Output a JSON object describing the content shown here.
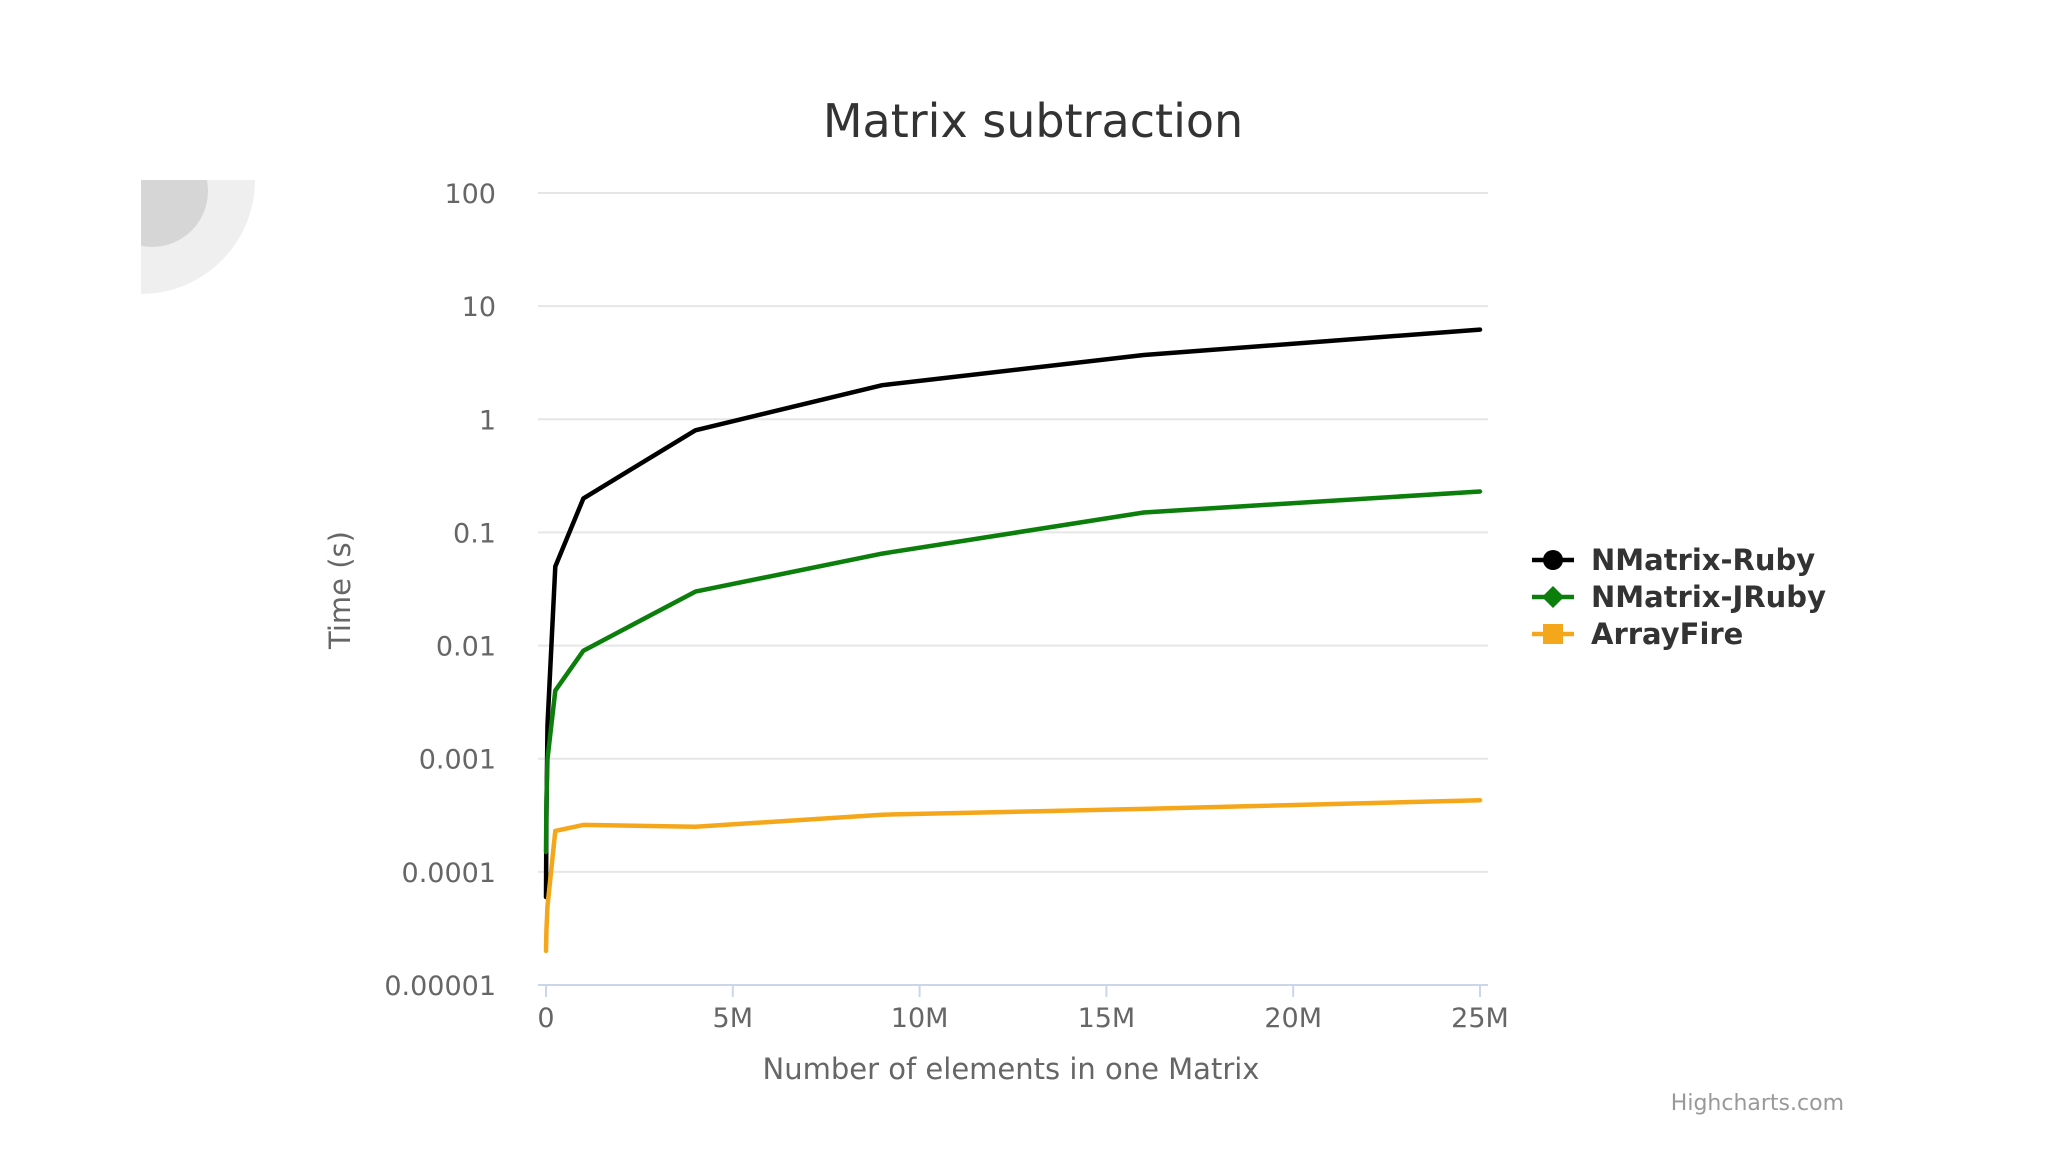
{
  "chart_data": {
    "type": "line",
    "title": "Matrix subtraction",
    "xlabel": "Number of elements in one Matrix",
    "ylabel": "Time (s)",
    "xlim": [
      0,
      25000000
    ],
    "ylim": [
      1e-05,
      100
    ],
    "yscale": "log",
    "x_ticks": [
      0,
      5000000,
      10000000,
      15000000,
      20000000,
      25000000
    ],
    "x_tick_labels": [
      "0",
      "5M",
      "10M",
      "15M",
      "20M",
      "25M"
    ],
    "y_ticks": [
      1e-05,
      0.0001,
      0.001,
      0.01,
      0.1,
      1,
      10,
      100
    ],
    "y_tick_labels": [
      "0.00001",
      "0.0001",
      "0.001",
      "0.01",
      "0.1",
      "1",
      "10",
      "100"
    ],
    "grid": true,
    "legend_position": "right",
    "credit": "Highcharts.com",
    "series": [
      {
        "name": "NMatrix-Ruby",
        "color": "#000000",
        "marker": "circle",
        "x": [
          100,
          10000,
          40000,
          250000,
          1000000,
          4000000,
          9000000,
          16000000,
          25000000
        ],
        "y": [
          6e-05,
          0.0003,
          0.002,
          0.05,
          0.2,
          0.8,
          2.0,
          3.7,
          6.2
        ]
      },
      {
        "name": "NMatrix-JRuby",
        "color": "#0b7e0b",
        "marker": "diamond",
        "x": [
          100,
          10000,
          40000,
          250000,
          1000000,
          4000000,
          9000000,
          16000000,
          25000000
        ],
        "y": [
          0.00015,
          0.0004,
          0.001,
          0.004,
          0.009,
          0.03,
          0.065,
          0.15,
          0.23
        ]
      },
      {
        "name": "ArrayFire",
        "color": "#f5a71b",
        "marker": "square",
        "x": [
          100,
          10000,
          40000,
          250000,
          1000000,
          4000000,
          9000000,
          16000000,
          25000000
        ],
        "y": [
          2e-05,
          3e-05,
          5e-05,
          0.00023,
          0.00026,
          0.00025,
          0.00032,
          0.00036,
          0.00043
        ]
      }
    ]
  }
}
